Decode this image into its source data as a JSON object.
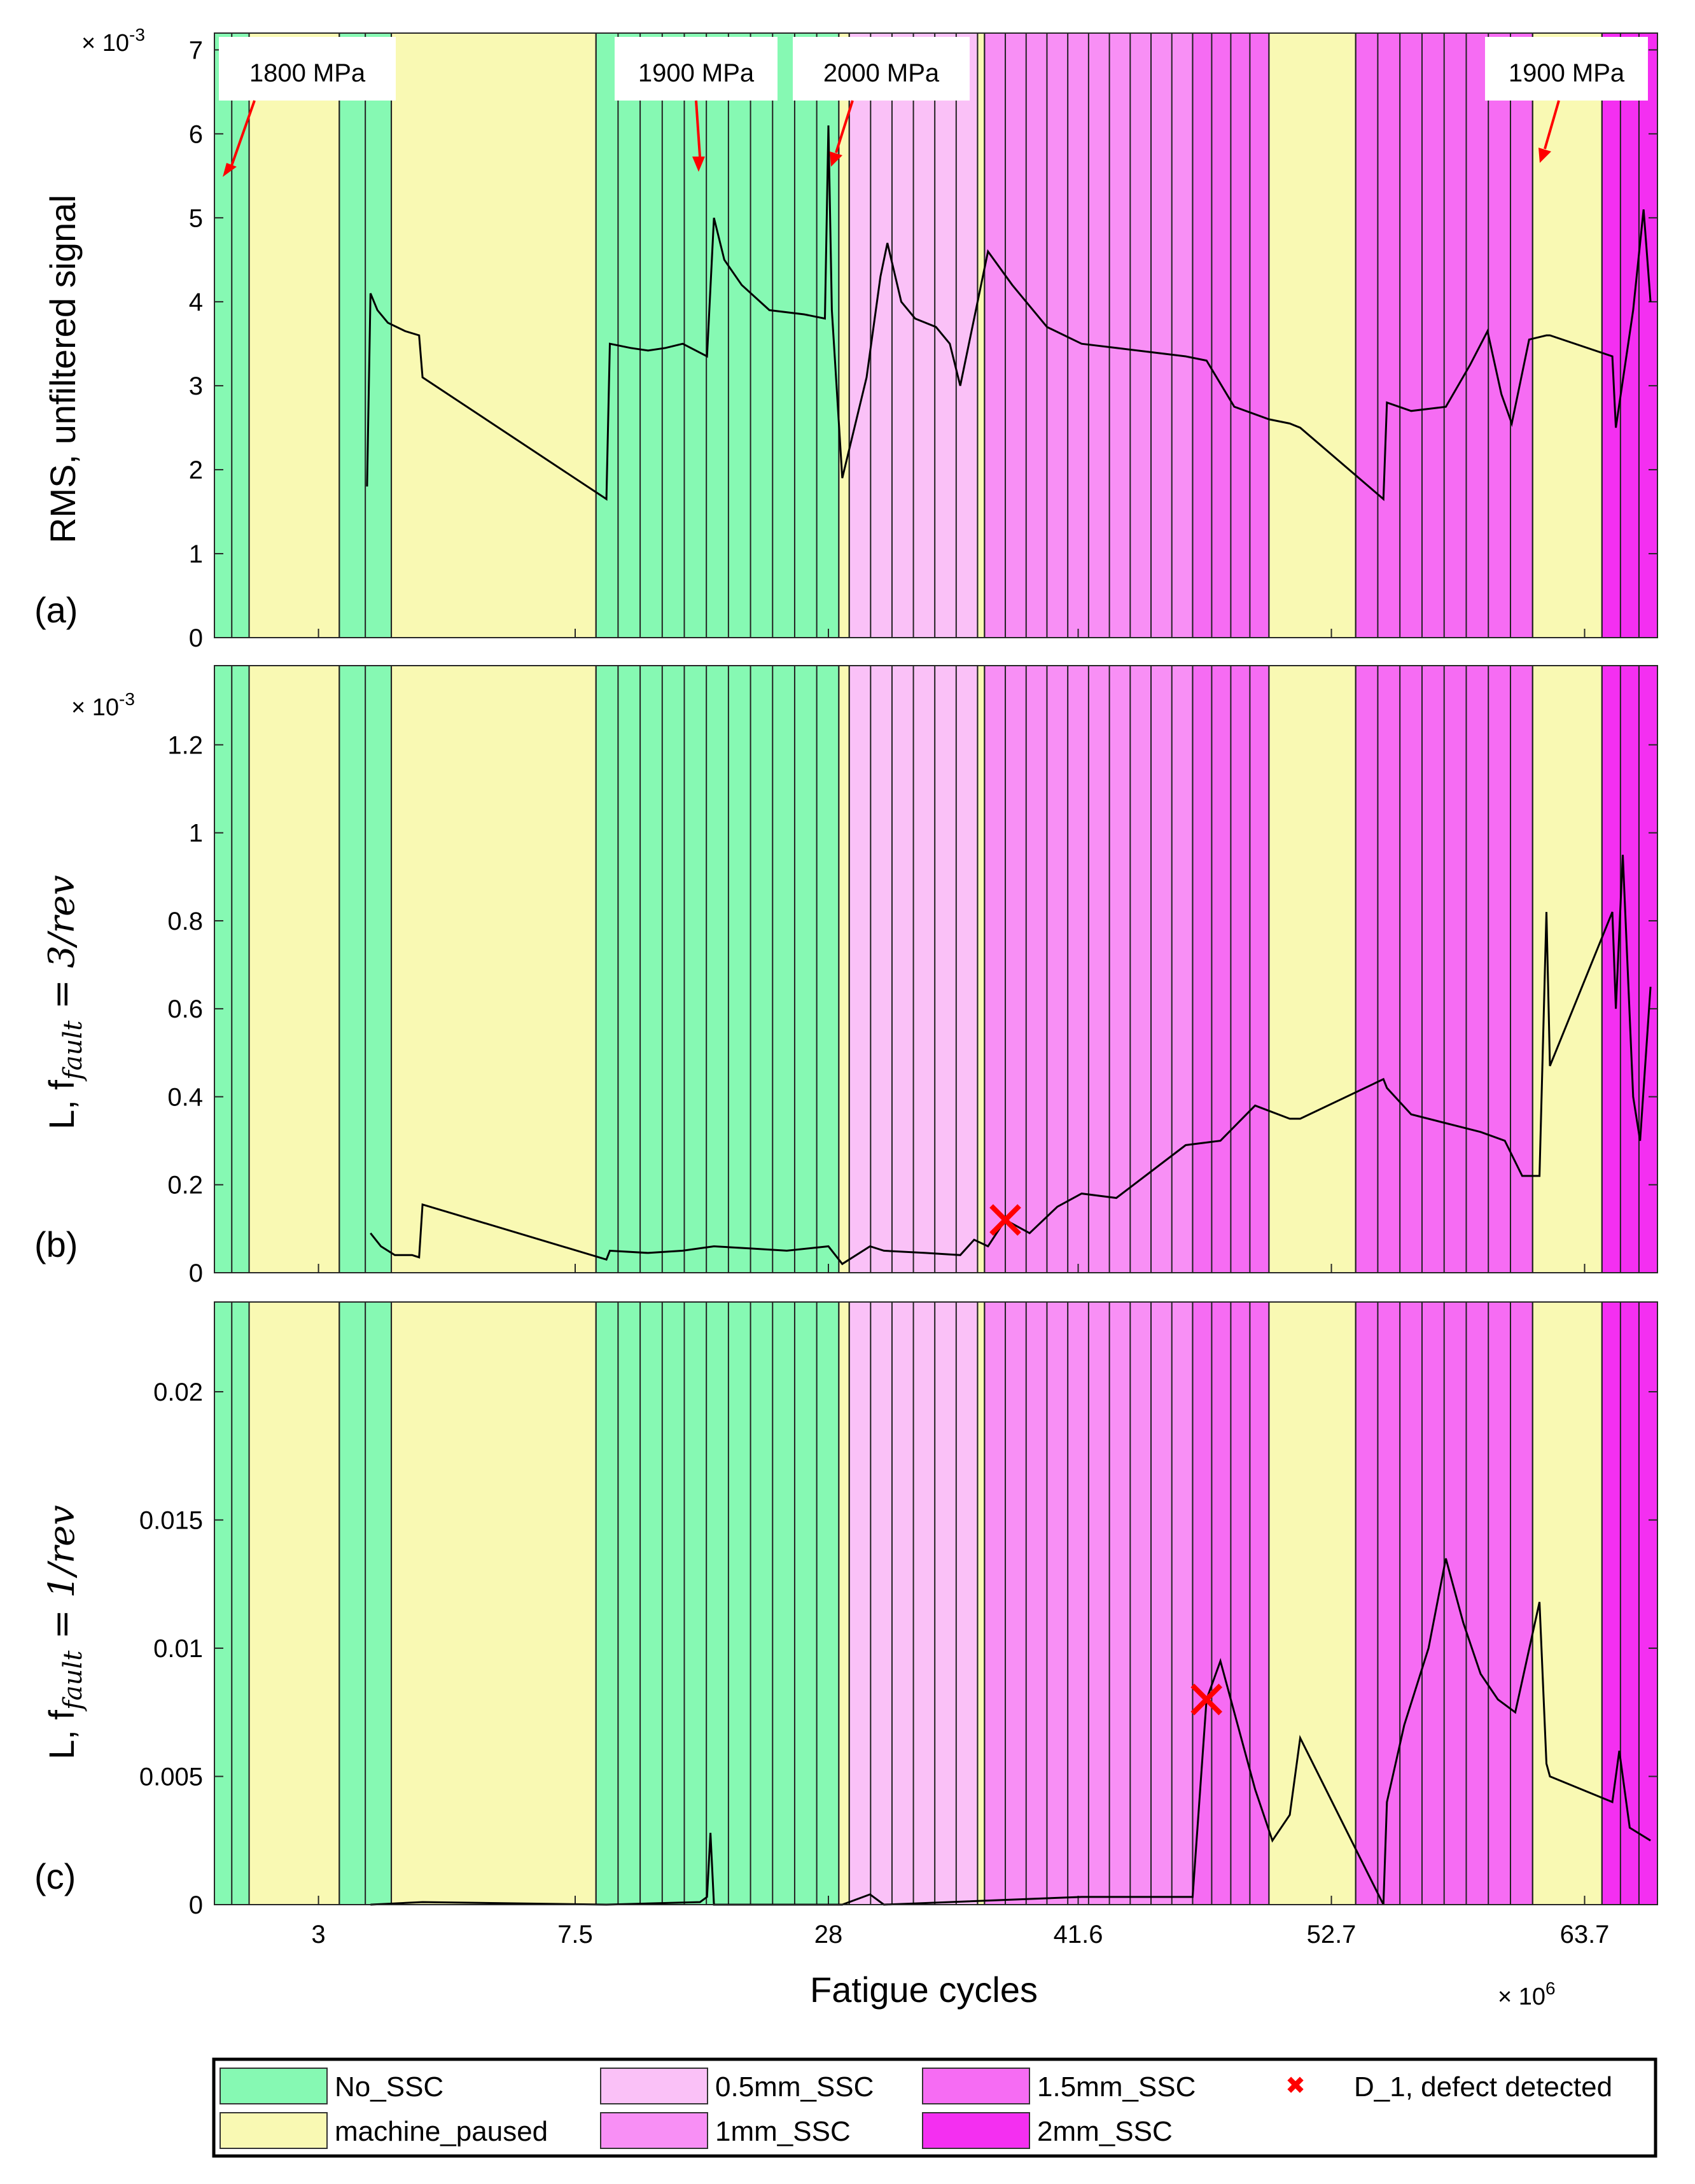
{
  "figure": {
    "xlabel": "Fatigue cycles",
    "x_multiplier": "× 10",
    "x_multiplier_exp": "6"
  },
  "chart_data": [
    {
      "type": "line",
      "panel": "(a)",
      "ylabel": "RMS, unfiltered signal",
      "y_multiplier": "× 10",
      "y_multiplier_exp": "-3",
      "ylim": [
        0,
        7.2
      ],
      "yticks": [
        "0",
        "1",
        "2",
        "3",
        "4",
        "5",
        "6",
        "7"
      ],
      "ytick_values": [
        0,
        1,
        2,
        3,
        4,
        5,
        6,
        7
      ],
      "annotations": [
        "1800 MPa",
        "1900 MPa",
        "2000 MPa",
        "1900 MPa"
      ],
      "series_points": [
        [
          4.4,
          1.8
        ],
        [
          4.5,
          4.1
        ],
        [
          4.7,
          3.9
        ],
        [
          5.0,
          3.75
        ],
        [
          5.5,
          3.65
        ],
        [
          5.9,
          3.6
        ],
        [
          6.0,
          3.1
        ],
        [
          11.3,
          1.65
        ],
        [
          11.4,
          3.5
        ],
        [
          12.0,
          3.45
        ],
        [
          12.5,
          3.42
        ],
        [
          13.0,
          3.45
        ],
        [
          13.5,
          3.5
        ],
        [
          14.2,
          3.35
        ],
        [
          14.4,
          5.0
        ],
        [
          14.7,
          4.5
        ],
        [
          15.2,
          4.2
        ],
        [
          16.0,
          3.9
        ],
        [
          17.0,
          3.85
        ],
        [
          17.6,
          3.8
        ],
        [
          17.7,
          6.1
        ],
        [
          17.8,
          3.9
        ],
        [
          18.1,
          1.9
        ],
        [
          18.8,
          3.1
        ],
        [
          19.2,
          4.3
        ],
        [
          19.4,
          4.7
        ],
        [
          19.8,
          4.0
        ],
        [
          20.2,
          3.8
        ],
        [
          20.8,
          3.7
        ],
        [
          21.2,
          3.5
        ],
        [
          21.5,
          3.0
        ],
        [
          22.3,
          4.6
        ],
        [
          23.0,
          4.2
        ],
        [
          24.0,
          3.7
        ],
        [
          25.0,
          3.5
        ],
        [
          26.0,
          3.45
        ],
        [
          27.0,
          3.4
        ],
        [
          28.0,
          3.35
        ],
        [
          28.6,
          3.3
        ],
        [
          29.4,
          2.75
        ],
        [
          30.4,
          2.6
        ],
        [
          31.0,
          2.55
        ],
        [
          31.3,
          2.5
        ],
        [
          33.7,
          1.65
        ],
        [
          33.8,
          2.8
        ],
        [
          34.5,
          2.7
        ],
        [
          35.5,
          2.75
        ],
        [
          36.2,
          3.25
        ],
        [
          36.7,
          3.65
        ],
        [
          37.1,
          2.9
        ],
        [
          37.4,
          2.55
        ],
        [
          37.9,
          3.55
        ],
        [
          38.4,
          3.6
        ],
        [
          38.5,
          3.6
        ],
        [
          40.3,
          3.35
        ],
        [
          40.4,
          2.5
        ],
        [
          40.9,
          3.9
        ],
        [
          41.2,
          5.1
        ],
        [
          41.4,
          4.0
        ]
      ]
    },
    {
      "type": "line",
      "panel": "(b)",
      "ylabel_parts": {
        "prefix": "L, f",
        "sub": "fault",
        "suffix": " = 3/rev"
      },
      "y_multiplier": "× 10",
      "y_multiplier_exp": "-3",
      "ylim": [
        0,
        1.38
      ],
      "yticks": [
        "0",
        "0.2",
        "0.4",
        "0.6",
        "0.8",
        "1",
        "1.2"
      ],
      "ytick_values": [
        0,
        0.2,
        0.4,
        0.6,
        0.8,
        1.0,
        1.2
      ],
      "marker": {
        "label": "D_1, defect detected",
        "x": 22.8,
        "y": 0.12
      },
      "series_points": [
        [
          4.5,
          0.09
        ],
        [
          4.8,
          0.06
        ],
        [
          5.2,
          0.04
        ],
        [
          5.7,
          0.04
        ],
        [
          5.9,
          0.035
        ],
        [
          6.0,
          0.155
        ],
        [
          11.3,
          0.03
        ],
        [
          11.4,
          0.05
        ],
        [
          12.5,
          0.045
        ],
        [
          13.5,
          0.05
        ],
        [
          14.4,
          0.06
        ],
        [
          15.5,
          0.055
        ],
        [
          16.5,
          0.05
        ],
        [
          17.7,
          0.06
        ],
        [
          18.1,
          0.02
        ],
        [
          18.9,
          0.06
        ],
        [
          19.3,
          0.05
        ],
        [
          20.5,
          0.045
        ],
        [
          21.5,
          0.04
        ],
        [
          21.9,
          0.075
        ],
        [
          22.3,
          0.06
        ],
        [
          22.8,
          0.12
        ],
        [
          23.5,
          0.09
        ],
        [
          24.3,
          0.15
        ],
        [
          25.0,
          0.18
        ],
        [
          26.0,
          0.17
        ],
        [
          27.0,
          0.23
        ],
        [
          28.0,
          0.29
        ],
        [
          29.0,
          0.3
        ],
        [
          30.0,
          0.38
        ],
        [
          31.0,
          0.35
        ],
        [
          31.3,
          0.35
        ],
        [
          33.7,
          0.44
        ],
        [
          33.8,
          0.42
        ],
        [
          34.5,
          0.36
        ],
        [
          35.5,
          0.34
        ],
        [
          36.5,
          0.32
        ],
        [
          37.2,
          0.3
        ],
        [
          37.7,
          0.22
        ],
        [
          38.2,
          0.22
        ],
        [
          38.4,
          0.82
        ],
        [
          38.5,
          0.47
        ],
        [
          40.3,
          0.82
        ],
        [
          40.4,
          0.6
        ],
        [
          40.6,
          0.95
        ],
        [
          40.9,
          0.4
        ],
        [
          41.1,
          0.3
        ],
        [
          41.4,
          0.65
        ]
      ]
    },
    {
      "type": "line",
      "panel": "(c)",
      "ylabel_parts": {
        "prefix": "L, f",
        "sub": "fault",
        "suffix": " = 1/rev"
      },
      "ylim": [
        0,
        0.0235
      ],
      "yticks": [
        "0",
        "0.005",
        "0.01",
        "0.015",
        "0.02"
      ],
      "ytick_values": [
        0,
        0.005,
        0.01,
        0.015,
        0.02
      ],
      "marker": {
        "label": "D_1, defect detected",
        "x": 28.6,
        "y": 0.008
      },
      "series_points": [
        [
          4.5,
          0.0
        ],
        [
          6.0,
          0.0001
        ],
        [
          11.3,
          0.0
        ],
        [
          14.0,
          0.0001
        ],
        [
          14.2,
          0.0003
        ],
        [
          14.3,
          0.0028
        ],
        [
          14.4,
          0.0
        ],
        [
          18.1,
          0.0
        ],
        [
          18.9,
          0.0004
        ],
        [
          19.3,
          0.0
        ],
        [
          25.0,
          0.0003
        ],
        [
          28.2,
          0.0003
        ],
        [
          28.6,
          0.008
        ],
        [
          29.0,
          0.0095
        ],
        [
          29.5,
          0.007
        ],
        [
          30.0,
          0.0045
        ],
        [
          30.5,
          0.0025
        ],
        [
          31.0,
          0.0035
        ],
        [
          31.3,
          0.0065
        ],
        [
          33.7,
          0.0
        ],
        [
          33.8,
          0.004
        ],
        [
          34.3,
          0.007
        ],
        [
          35.0,
          0.01
        ],
        [
          35.5,
          0.0135
        ],
        [
          36.0,
          0.011
        ],
        [
          36.5,
          0.009
        ],
        [
          37.0,
          0.008
        ],
        [
          37.5,
          0.0075
        ],
        [
          38.2,
          0.0118
        ],
        [
          38.4,
          0.0055
        ],
        [
          38.5,
          0.005
        ],
        [
          40.3,
          0.004
        ],
        [
          40.5,
          0.006
        ],
        [
          40.8,
          0.003
        ],
        [
          41.4,
          0.0025
        ]
      ]
    }
  ],
  "x_axis": {
    "xlim": [
      0,
      41.6
    ],
    "ticks": [
      {
        "pos": 3.0,
        "label": "3"
      },
      {
        "pos": 10.4,
        "label": "7.5"
      },
      {
        "pos": 17.7,
        "label": "28"
      },
      {
        "pos": 24.9,
        "label": "41.6"
      },
      {
        "pos": 32.2,
        "label": "52.7"
      },
      {
        "pos": 39.5,
        "label": "63.7"
      }
    ]
  },
  "categories": [
    {
      "key": "no",
      "label": "No_SSC",
      "color": "#86f9b3"
    },
    {
      "key": "mp",
      "label": "machine_paused",
      "color": "#f9f9b3"
    },
    {
      "key": "h05",
      "label": "0.5mm_SSC",
      "color": "#fac1f7"
    },
    {
      "key": "h1",
      "label": "1mm_SSC",
      "color": "#f88ff5"
    },
    {
      "key": "h15",
      "label": "1.5mm_SSC",
      "color": "#f66cf3"
    },
    {
      "key": "h2",
      "label": "2mm_SSC",
      "color": "#f42ff1"
    }
  ],
  "segments": [
    {
      "start": 0.0,
      "end": 1.0,
      "cat": "no"
    },
    {
      "start": 1.0,
      "end": 3.6,
      "cat": "mp"
    },
    {
      "start": 3.6,
      "end": 5.1,
      "cat": "no"
    },
    {
      "start": 5.1,
      "end": 11.0,
      "cat": "mp"
    },
    {
      "start": 11.0,
      "end": 18.0,
      "cat": "no"
    },
    {
      "start": 18.0,
      "end": 18.3,
      "cat": "mp"
    },
    {
      "start": 18.3,
      "end": 22.0,
      "cat": "h05"
    },
    {
      "start": 22.0,
      "end": 22.2,
      "cat": "mp"
    },
    {
      "start": 22.2,
      "end": 28.2,
      "cat": "h1"
    },
    {
      "start": 28.2,
      "end": 30.4,
      "cat": "h15"
    },
    {
      "start": 30.4,
      "end": 32.9,
      "cat": "mp"
    },
    {
      "start": 32.9,
      "end": 38.0,
      "cat": "h15"
    },
    {
      "start": 38.0,
      "end": 40.0,
      "cat": "mp"
    },
    {
      "start": 40.0,
      "end": 41.6,
      "cat": "h2"
    }
  ],
  "legend": {
    "items": [
      "No_SSC",
      "0.5mm_SSC",
      "1.5mm_SSC",
      "D_1, defect detected",
      "machine_paused",
      "1mm_SSC",
      "2mm_SSC"
    ],
    "marker_color": "#ff0000",
    "marker_symbol": "✖"
  },
  "panel_labels": [
    "(a)",
    "(b)",
    "(c)"
  ]
}
